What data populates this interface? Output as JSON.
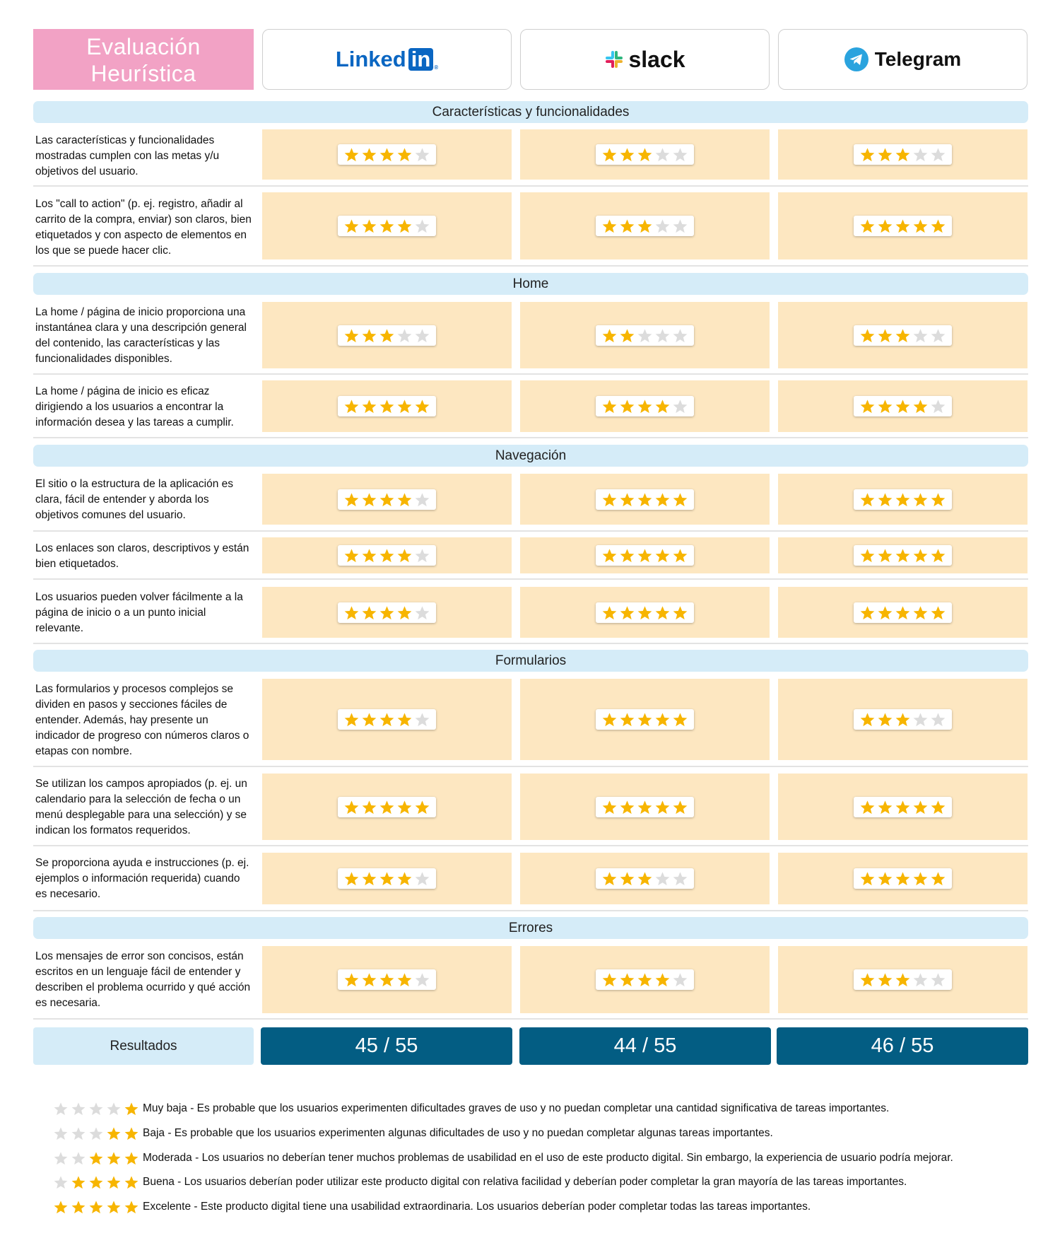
{
  "title": "Evaluación Heurística",
  "products": [
    {
      "name": "LinkedIn",
      "logo_text": "Linked",
      "logo_badge": "in",
      "icon": "linkedin-logo"
    },
    {
      "name": "slack",
      "logo_text": "slack",
      "icon": "slack-hash-icon"
    },
    {
      "name": "Telegram",
      "logo_text": "Telegram",
      "icon": "telegram-plane-icon"
    }
  ],
  "colors": {
    "title_bg": "#f2a2c5",
    "section_bg": "#d5ecf8",
    "cell_bg": "#fde7c1",
    "result_bg": "#035d83",
    "star_on": "#f7b500",
    "star_off": "#dcdcdc"
  },
  "sections": [
    {
      "title": "Características y funcionalidades",
      "rows": [
        {
          "text": "Las características y funcionalidades mostradas cumplen con las metas  y/u objetivos del usuario.",
          "ratings": [
            4,
            3,
            3
          ]
        },
        {
          "text": "Los \"call to action\" (p. ej. registro, añadir al carrito de la compra, enviar) son claros, bien etiquetados y con aspecto de elementos en los que se puede hacer clic.",
          "ratings": [
            4,
            3,
            5
          ]
        }
      ]
    },
    {
      "title": "Home",
      "rows": [
        {
          "text": "La home / página de inicio proporciona una instantánea clara y una descripción general del contenido, las características y las funcionalidades disponibles.",
          "ratings": [
            3,
            2,
            3
          ]
        },
        {
          "text": "La home / página de inicio es eficaz dirigiendo a los usuarios a encontrar la información desea y las tareas a cumplir.",
          "ratings": [
            5,
            4,
            4
          ]
        }
      ]
    },
    {
      "title": "Navegación",
      "rows": [
        {
          "text": "El sitio o la estructura de la aplicación es clara, fácil de entender y aborda los objetivos comunes del usuario.",
          "ratings": [
            4,
            5,
            5
          ]
        },
        {
          "text": "Los enlaces son claros, descriptivos y están bien etiquetados.",
          "ratings": [
            4,
            5,
            5
          ]
        },
        {
          "text": "Los usuarios pueden volver fácilmente a la página de inicio o a un punto inicial relevante.",
          "ratings": [
            4,
            5,
            5
          ]
        }
      ]
    },
    {
      "title": "Formularios",
      "rows": [
        {
          "text": "Las formularios y procesos complejos se dividen en pasos y secciones fáciles de entender. Además, hay presente un indicador de progreso con números claros o etapas con nombre.",
          "ratings": [
            4,
            5,
            3
          ]
        },
        {
          "text": "Se utilizan los campos apropiados (p. ej. un calendario para la selección de fecha o un menú desplegable para una selección) y se indican los formatos requeridos.",
          "ratings": [
            5,
            5,
            5
          ]
        },
        {
          "text": "Se proporciona ayuda e instrucciones (p. ej. ejemplos o información requerida) cuando es necesario.",
          "ratings": [
            4,
            3,
            5
          ]
        }
      ]
    },
    {
      "title": "Errores",
      "rows": [
        {
          "text": "Los mensajes de error son concisos, están escritos en un lenguaje fácil de entender y describen el problema ocurrido y qué acción es necesaria.",
          "ratings": [
            4,
            4,
            3
          ]
        }
      ]
    }
  ],
  "results": {
    "label": "Resultados",
    "scores": [
      "45 / 55",
      "44 / 55",
      "46 / 55"
    ]
  },
  "legend": [
    {
      "stars": 1,
      "label": "Muy baja",
      "description": "Muy baja  - Es probable que los usuarios experimenten dificultades graves de uso y no puedan completar una cantidad significativa de tareas importantes."
    },
    {
      "stars": 2,
      "label": "Baja",
      "description": "Baja - Es probable que los usuarios experimenten algunas dificultades de uso y no puedan completar algunas tareas importantes."
    },
    {
      "stars": 3,
      "label": "Moderada",
      "description": "Moderada - Los usuarios no deberían tener muchos problemas de usabilidad en el uso de este producto digital. Sin embargo, la experiencia de usuario podría mejorar."
    },
    {
      "stars": 4,
      "label": "Buena",
      "description": "Buena - Los usuarios deberían poder utilizar este producto digital con relativa facilidad y deberían poder completar la gran mayoría de las tareas importantes."
    },
    {
      "stars": 5,
      "label": "Excelente",
      "description": "Excelente - Este producto digital tiene una usabilidad extraordinaria. Los usuarios deberían poder completar todas las tareas importantes."
    }
  ]
}
